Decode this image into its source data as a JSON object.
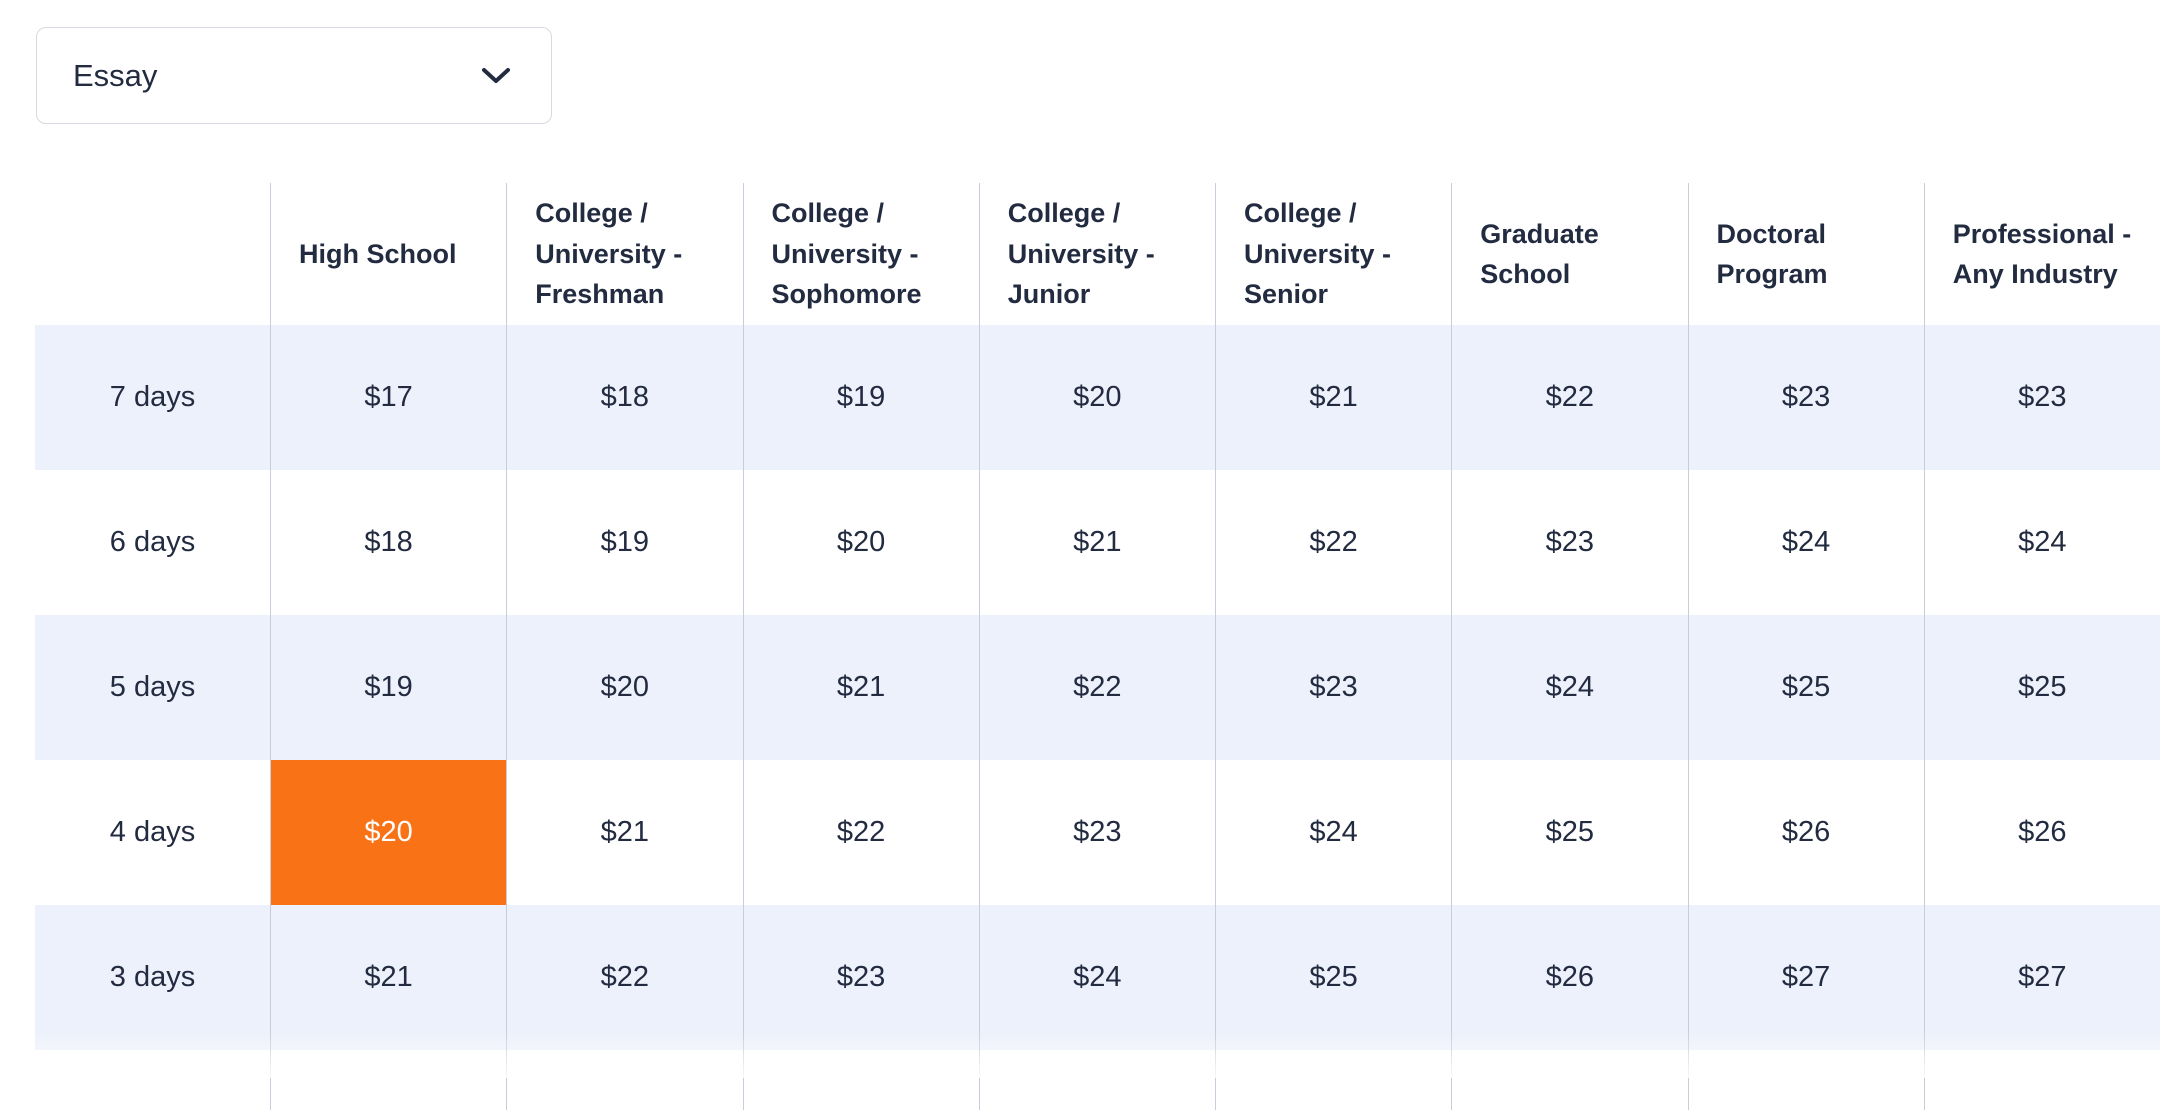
{
  "dropdown": {
    "value": "Essay"
  },
  "table": {
    "headers": [
      "High School",
      "College / University - Freshman",
      "College / University - Sophomore",
      "College / University - Junior",
      "College / University - Senior",
      "Graduate School",
      "Doctoral Program",
      "Professional - Any Industry"
    ],
    "rows": [
      {
        "label": "7 days",
        "values": [
          "$17",
          "$18",
          "$19",
          "$20",
          "$21",
          "$22",
          "$23",
          "$23"
        ]
      },
      {
        "label": "6 days",
        "values": [
          "$18",
          "$19",
          "$20",
          "$21",
          "$22",
          "$23",
          "$24",
          "$24"
        ]
      },
      {
        "label": "5 days",
        "values": [
          "$19",
          "$20",
          "$21",
          "$22",
          "$23",
          "$24",
          "$25",
          "$25"
        ]
      },
      {
        "label": "4 days",
        "values": [
          "$20",
          "$21",
          "$22",
          "$23",
          "$24",
          "$25",
          "$26",
          "$26"
        ]
      },
      {
        "label": "3 days",
        "values": [
          "$21",
          "$22",
          "$23",
          "$24",
          "$25",
          "$26",
          "$27",
          "$27"
        ]
      }
    ],
    "selected_cell": {
      "row_index": 3,
      "col_index": 0,
      "row_label": "4 days",
      "column": "High School",
      "value": "$20"
    }
  },
  "colors": {
    "highlight": "#f97316",
    "row_alt": "#edf1fb",
    "text": "#222b40",
    "border": "#c9cdd9"
  }
}
